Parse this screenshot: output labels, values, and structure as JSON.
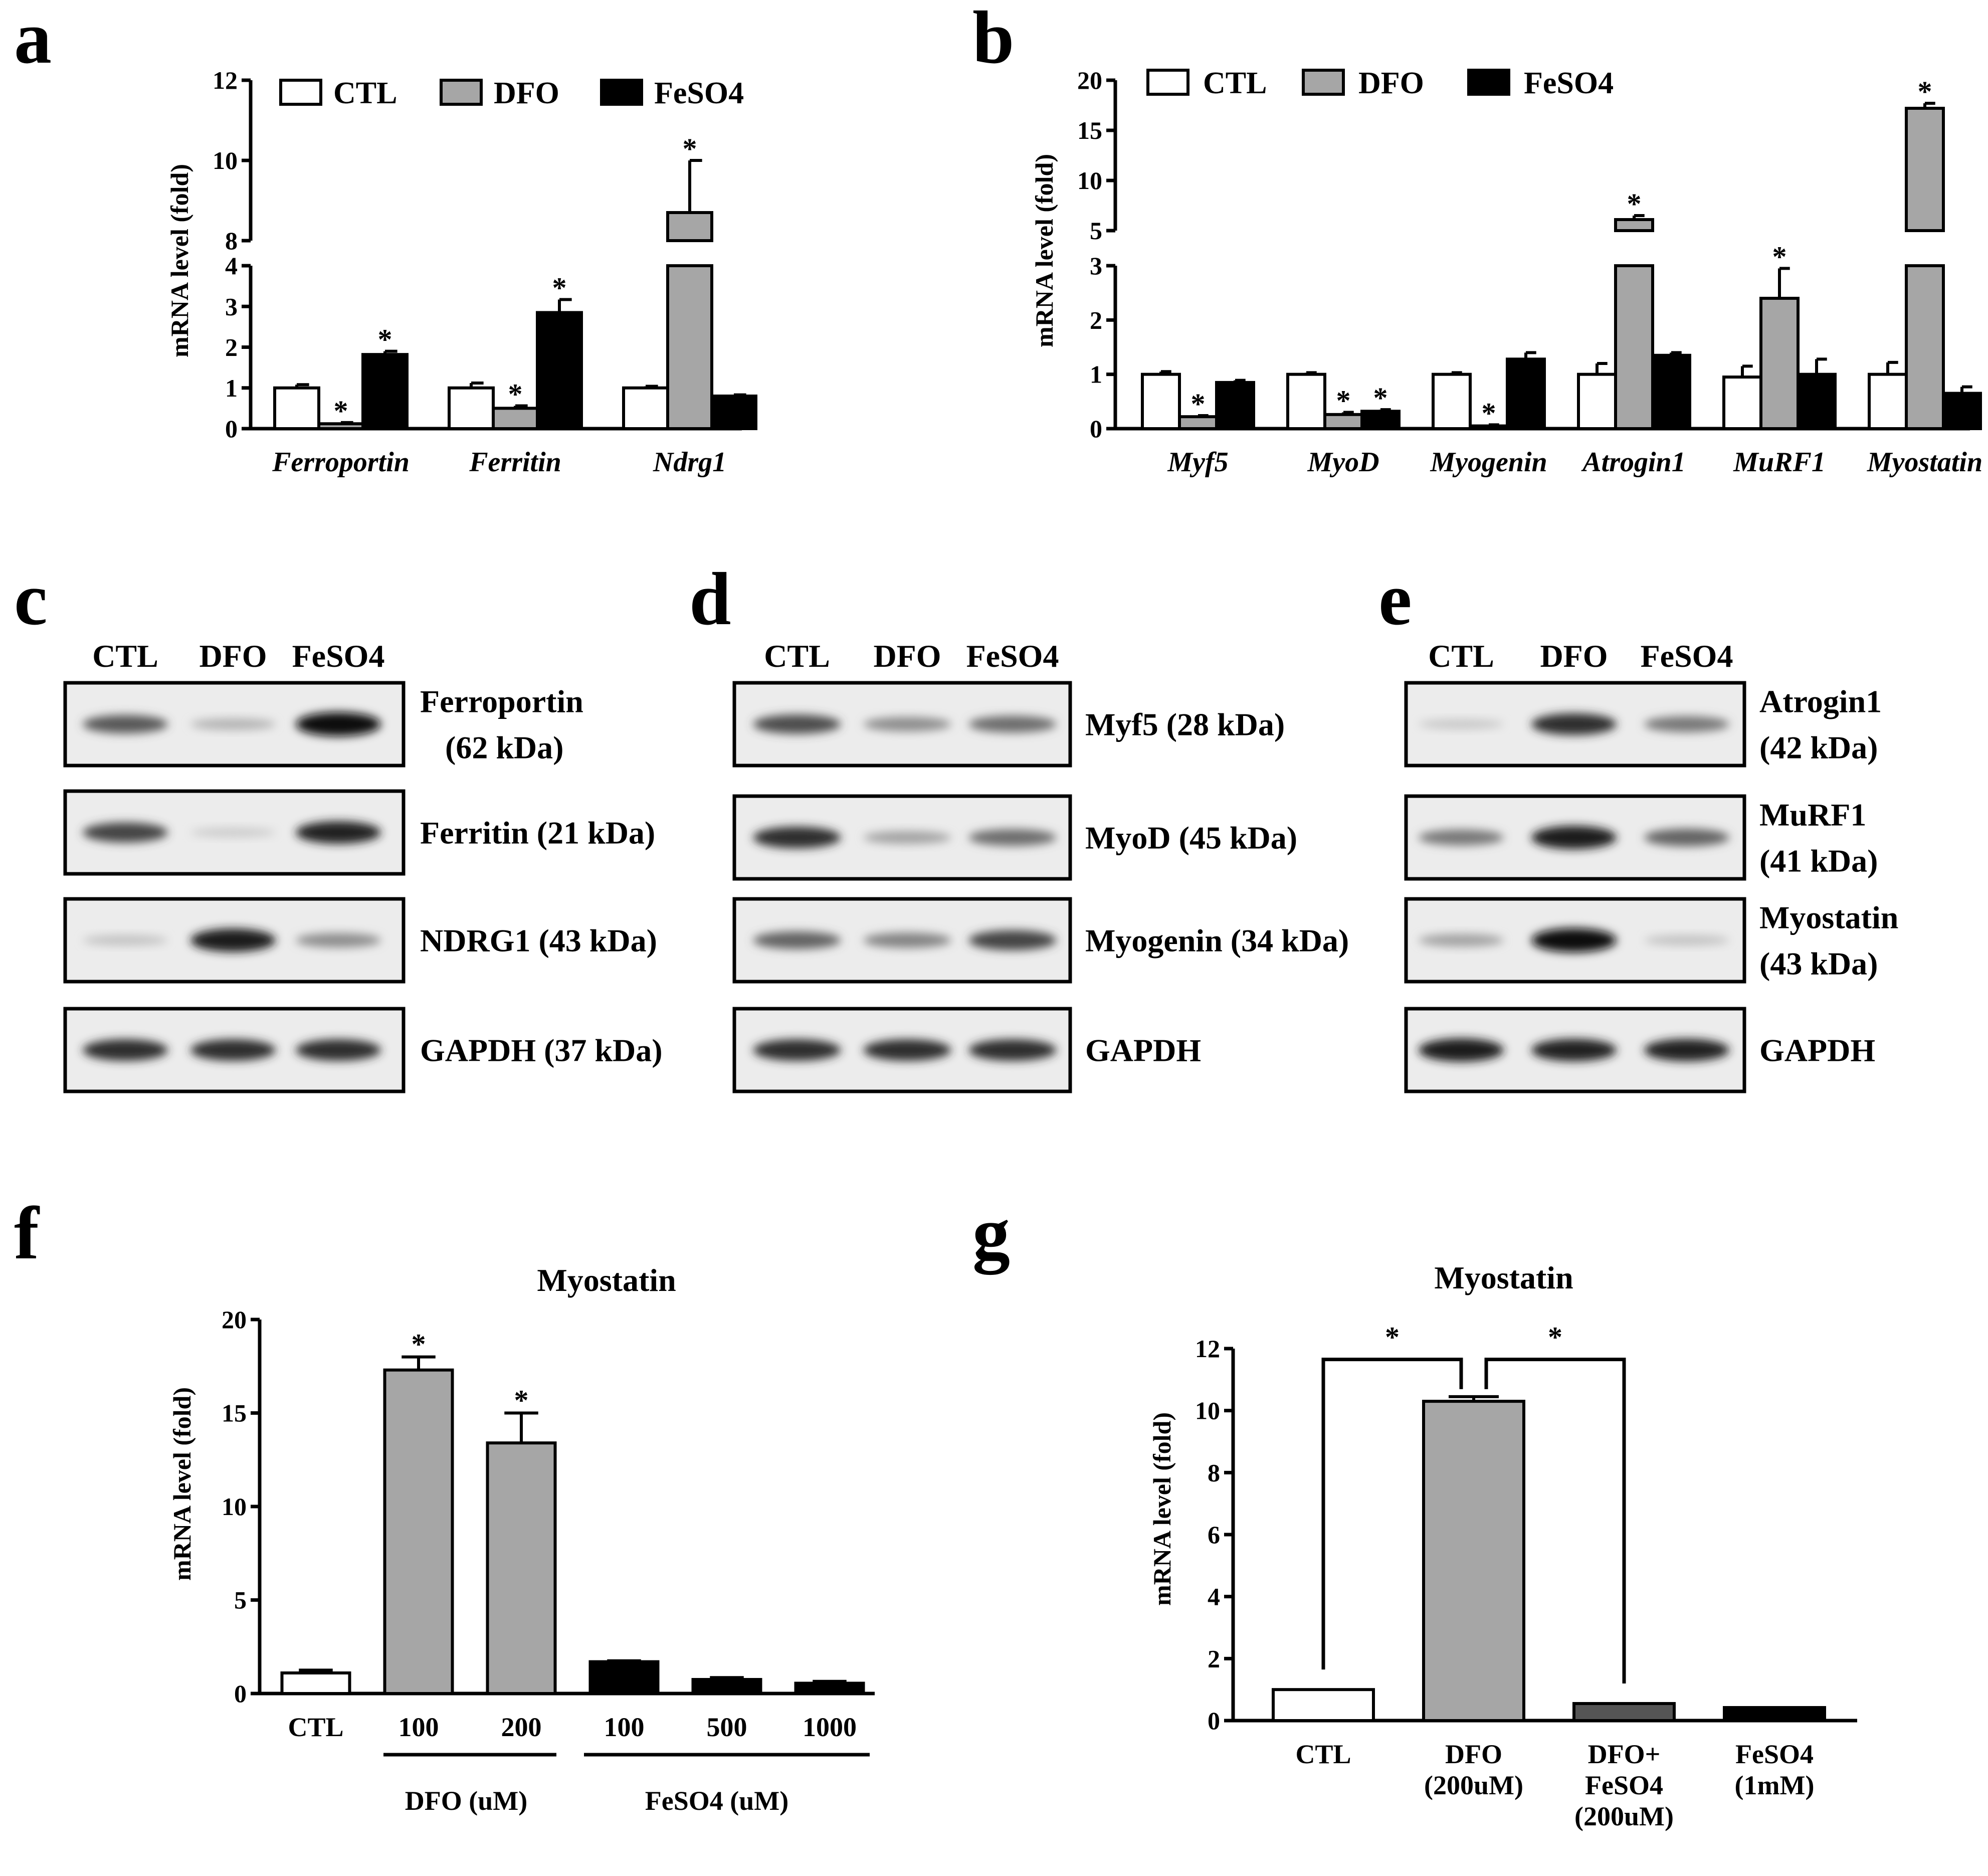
{
  "colors": {
    "CTL": "#ffffff",
    "DFO": "#a6a6a6",
    "FeSO4": "#000000",
    "DFO+FeSO4": "#555555"
  },
  "panel_labels": {
    "a": "a",
    "b": "b",
    "c": "c",
    "d": "d",
    "e": "e",
    "f": "f",
    "g": "g"
  },
  "chart_data": [
    {
      "id": "a",
      "type": "bar",
      "ylabel": "mRNA level (fold)",
      "legend": [
        "CTL",
        "DFO",
        "FeSO4"
      ],
      "categories": [
        "Ferroportin",
        "Ferritin",
        "Ndrg1"
      ],
      "series": [
        {
          "name": "CTL",
          "values": [
            1.0,
            1.0,
            1.0
          ],
          "errors": [
            0.08,
            0.12,
            0.04
          ]
        },
        {
          "name": "DFO",
          "values": [
            0.12,
            0.5,
            8.7
          ],
          "errors": [
            0.03,
            0.06,
            1.3
          ]
        },
        {
          "name": "FeSO4",
          "values": [
            1.82,
            2.85,
            0.8
          ],
          "errors": [
            0.08,
            0.32,
            0.03
          ]
        }
      ],
      "significance": [
        [
          false,
          true,
          true
        ],
        [
          false,
          true,
          true
        ],
        [
          false,
          true,
          false
        ]
      ],
      "axis_breaks": {
        "lower_ylim": [
          0,
          4
        ],
        "lower_ticks": [
          "0",
          "1",
          "2",
          "3",
          "4"
        ],
        "upper_ylim": [
          8,
          12
        ],
        "upper_ticks": [
          "8",
          "10",
          "12"
        ]
      },
      "star": "*"
    },
    {
      "id": "b",
      "type": "bar",
      "ylabel": "mRNA level (fold)",
      "legend": [
        "CTL",
        "DFO",
        "FeSO4"
      ],
      "categories": [
        "Myf5",
        "MyoD",
        "Myogenin",
        "Atrogin1",
        "MuRF1",
        "Myostatin"
      ],
      "series": [
        {
          "name": "CTL",
          "values": [
            1.0,
            1.0,
            1.0,
            1.0,
            0.95,
            1.0
          ],
          "errors": [
            0.05,
            0.03,
            0.03,
            0.2,
            0.2,
            0.22
          ]
        },
        {
          "name": "DFO",
          "values": [
            0.22,
            0.26,
            0.05,
            6.1,
            2.4,
            17.2
          ],
          "errors": [
            0.02,
            0.04,
            0.02,
            0.4,
            0.55,
            0.5
          ]
        },
        {
          "name": "FeSO4",
          "values": [
            0.85,
            0.32,
            1.28,
            1.35,
            1.0,
            0.65
          ],
          "errors": [
            0.04,
            0.03,
            0.12,
            0.05,
            0.28,
            0.12
          ]
        }
      ],
      "significance": [
        [
          false,
          true,
          false
        ],
        [
          false,
          true,
          true
        ],
        [
          false,
          true,
          false
        ],
        [
          false,
          true,
          false
        ],
        [
          false,
          true,
          false
        ],
        [
          false,
          true,
          false
        ]
      ],
      "axis_breaks": {
        "lower_ylim": [
          0,
          3
        ],
        "lower_ticks": [
          "0",
          "1",
          "2",
          "3"
        ],
        "upper_ylim": [
          5,
          20
        ],
        "upper_ticks": [
          "5",
          "10",
          "15",
          "20"
        ]
      },
      "star": "*"
    },
    {
      "id": "f",
      "type": "bar",
      "title": "Myostatin",
      "ylabel": "mRNA level (fold)",
      "ylim": [
        0,
        20
      ],
      "yticks": [
        "0",
        "5",
        "10",
        "15",
        "20"
      ],
      "categories": [
        "CTL",
        "100",
        "200",
        "100",
        "500",
        "1000"
      ],
      "groups": [
        "CTL",
        "DFO",
        "DFO",
        "FeSO4",
        "FeSO4",
        "FeSO4"
      ],
      "values": [
        1.1,
        17.3,
        13.4,
        1.7,
        0.75,
        0.55
      ],
      "errors": [
        0.15,
        0.7,
        1.6,
        0.05,
        0.1,
        0.1
      ],
      "significant": [
        false,
        true,
        true,
        false,
        false,
        false
      ],
      "group_labels": [
        "DFO (uM)",
        "FeSO4 (uM)"
      ],
      "star": "*"
    },
    {
      "id": "g",
      "type": "bar",
      "title": "Myostatin",
      "ylabel": "mRNA level (fold)",
      "ylim": [
        0,
        12
      ],
      "yticks": [
        "0",
        "2",
        "4",
        "6",
        "8",
        "10",
        "12"
      ],
      "categories": [
        [
          "CTL"
        ],
        [
          "DFO",
          "(200uM)"
        ],
        [
          "DFO+",
          "FeSO4",
          "(200uM)"
        ],
        [
          "FeSO4",
          "(1mM)"
        ]
      ],
      "groups": [
        "CTL",
        "DFO",
        "DFO+FeSO4",
        "FeSO4"
      ],
      "values": [
        1.0,
        10.3,
        0.55,
        0.42
      ],
      "errors": [
        0.0,
        0.15,
        0.0,
        0.0
      ],
      "comparisons": [
        [
          "CTL",
          "DFO"
        ],
        [
          "DFO",
          "DFO+FeSO4"
        ]
      ],
      "star": "*"
    }
  ],
  "blots": {
    "c": {
      "lanes": [
        "CTL",
        "DFO",
        "FeSO4"
      ],
      "rows": [
        {
          "lines": [
            "Ferroportin",
            "(62 kDa)"
          ],
          "intensity": [
            0.65,
            0.22,
            1.0
          ]
        },
        {
          "lines": [
            "Ferritin  (21 kDa)"
          ],
          "intensity": [
            0.75,
            0.1,
            0.9
          ]
        },
        {
          "lines": [
            "NDRG1 (43 kDa)"
          ],
          "intensity": [
            0.15,
            0.95,
            0.4
          ]
        },
        {
          "lines": [
            "GAPDH (37 kDa)"
          ],
          "intensity": [
            0.85,
            0.85,
            0.85
          ]
        }
      ]
    },
    "d": {
      "lanes": [
        "CTL",
        "DFO",
        "FeSO4"
      ],
      "rows": [
        {
          "lines": [
            "Myf5 (28 kDa)"
          ],
          "intensity": [
            0.7,
            0.4,
            0.55
          ]
        },
        {
          "lines": [
            "MyoD (45 kDa)"
          ],
          "intensity": [
            0.85,
            0.3,
            0.55
          ]
        },
        {
          "lines": [
            "Myogenin (34 kDa)"
          ],
          "intensity": [
            0.6,
            0.45,
            0.75
          ]
        },
        {
          "lines": [
            "GAPDH"
          ],
          "intensity": [
            0.85,
            0.85,
            0.85
          ]
        }
      ]
    },
    "e": {
      "lanes": [
        "CTL",
        "DFO",
        "FeSO4"
      ],
      "rows": [
        {
          "lines": [
            "Atrogin1",
            "(42 kDa)"
          ],
          "intensity": [
            0.12,
            0.85,
            0.5
          ]
        },
        {
          "lines": [
            "MuRF1",
            "(41 kDa)"
          ],
          "intensity": [
            0.5,
            0.95,
            0.6
          ]
        },
        {
          "lines": [
            "Myostatin",
            "(43 kDa)"
          ],
          "intensity": [
            0.3,
            1.0,
            0.15
          ]
        },
        {
          "lines": [
            "GAPDH"
          ],
          "intensity": [
            0.95,
            0.9,
            0.9
          ]
        }
      ]
    }
  }
}
